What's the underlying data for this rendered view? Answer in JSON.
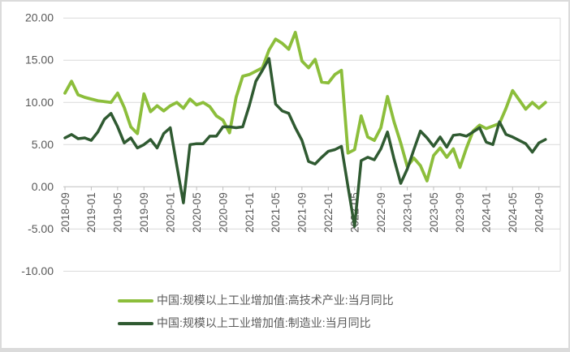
{
  "chart_data": {
    "type": "line",
    "title": "",
    "xlabel": "",
    "ylabel": "",
    "grid": true,
    "legend_position": "bottom-left",
    "ylim": [
      -10,
      20
    ],
    "y_tick_step": 5,
    "y_tick_values": [
      20,
      15,
      10,
      5,
      0,
      -5,
      -10
    ],
    "y_tick_labels": [
      "20.00",
      "15.00",
      "10.00",
      "5.00",
      "0.00",
      "-5.00",
      "-10.00"
    ],
    "x_tick_labels": [
      "2018-09",
      "2019-01",
      "2019-05",
      "2019-09",
      "2020-01",
      "2020-05",
      "2020-09",
      "2021-01",
      "2021-05",
      "2021-09",
      "2022-01",
      "2022-05",
      "2022-09",
      "2023-01",
      "2023-05",
      "2023-09",
      "2024-01",
      "2024-05",
      "2024-09"
    ],
    "x_tick_every_n_points": 4,
    "x": [
      "2018-09",
      "2018-10",
      "2018-11",
      "2018-12",
      "2019-01",
      "2019-02",
      "2019-03",
      "2019-04",
      "2019-05",
      "2019-06",
      "2019-07",
      "2019-08",
      "2019-09",
      "2019-10",
      "2019-11",
      "2019-12",
      "2020-01",
      "2020-02",
      "2020-03",
      "2020-04",
      "2020-05",
      "2020-06",
      "2020-07",
      "2020-08",
      "2020-09",
      "2020-10",
      "2020-11",
      "2020-12",
      "2021-01",
      "2021-02",
      "2021-03",
      "2021-04",
      "2021-05",
      "2021-06",
      "2021-07",
      "2021-08",
      "2021-09",
      "2021-10",
      "2021-11",
      "2021-12",
      "2022-01",
      "2022-02",
      "2022-03",
      "2022-04",
      "2022-05",
      "2022-06",
      "2022-07",
      "2022-08",
      "2022-09",
      "2022-10",
      "2022-11",
      "2022-12",
      "2023-01",
      "2023-02",
      "2023-03",
      "2023-04",
      "2023-05",
      "2023-06",
      "2023-07",
      "2023-08",
      "2023-09",
      "2023-10",
      "2023-11",
      "2023-12",
      "2024-01",
      "2024-02",
      "2024-03",
      "2024-04",
      "2024-05",
      "2024-06",
      "2024-07",
      "2024-08",
      "2024-09",
      "2024-10"
    ],
    "series": [
      {
        "name": "中国:规模以上工业增加值:高技术产业:当月同比",
        "color": "#8CBE3B",
        "stroke_width": 3.8,
        "values": [
          11.1,
          12.5,
          10.9,
          10.6,
          10.4,
          10.2,
          10.1,
          10.0,
          11.1,
          9.4,
          7.1,
          6.3,
          11.0,
          8.9,
          9.6,
          9.0,
          9.6,
          10.0,
          9.3,
          10.4,
          9.7,
          10.0,
          9.5,
          8.4,
          7.9,
          6.4,
          10.6,
          13.1,
          13.3,
          13.7,
          14.1,
          16.2,
          17.5,
          17.0,
          16.3,
          18.3,
          14.9,
          14.1,
          15.1,
          12.4,
          12.3,
          13.3,
          13.8,
          4.0,
          4.4,
          8.4,
          5.9,
          5.5,
          7.0,
          10.7,
          7.7,
          5.2,
          2.4,
          3.4,
          2.5,
          0.7,
          3.7,
          4.6,
          3.5,
          4.5,
          2.3,
          4.6,
          6.6,
          7.3,
          6.9,
          7.2,
          7.5,
          9.3,
          11.4,
          10.3,
          9.2,
          10.0,
          9.3,
          10.0
        ]
      },
      {
        "name": "中国:规模以上工业增加值:制造业:当月同比",
        "color": "#2F5A31",
        "stroke_width": 3.5,
        "values": [
          5.8,
          6.2,
          5.7,
          5.8,
          5.5,
          6.5,
          8.0,
          8.7,
          7.1,
          5.2,
          5.8,
          4.6,
          5.0,
          5.6,
          4.6,
          6.3,
          7.0,
          2.5,
          -1.9,
          5.0,
          5.1,
          5.1,
          6.0,
          6.0,
          7.1,
          7.1,
          7.0,
          7.1,
          9.6,
          12.5,
          13.8,
          15.2,
          9.8,
          9.0,
          8.7,
          7.0,
          5.5,
          3.0,
          2.7,
          3.5,
          4.2,
          4.4,
          4.8,
          0.0,
          -4.7,
          3.1,
          3.5,
          3.2,
          4.5,
          6.5,
          3.3,
          0.4,
          2.1,
          4.4,
          6.6,
          5.8,
          4.8,
          5.9,
          4.7,
          6.1,
          6.2,
          6.0,
          6.5,
          7.0,
          5.3,
          5.0,
          7.7,
          6.2,
          5.9,
          5.5,
          5.1,
          4.1,
          5.2,
          5.6
        ]
      }
    ],
    "colors": {
      "gridline": "#D9D9D9",
      "axis_line": "#BFBFBF",
      "tick_label": "#595959",
      "background": "#FFFFFF",
      "frame_border": "#DBDBDB"
    }
  }
}
